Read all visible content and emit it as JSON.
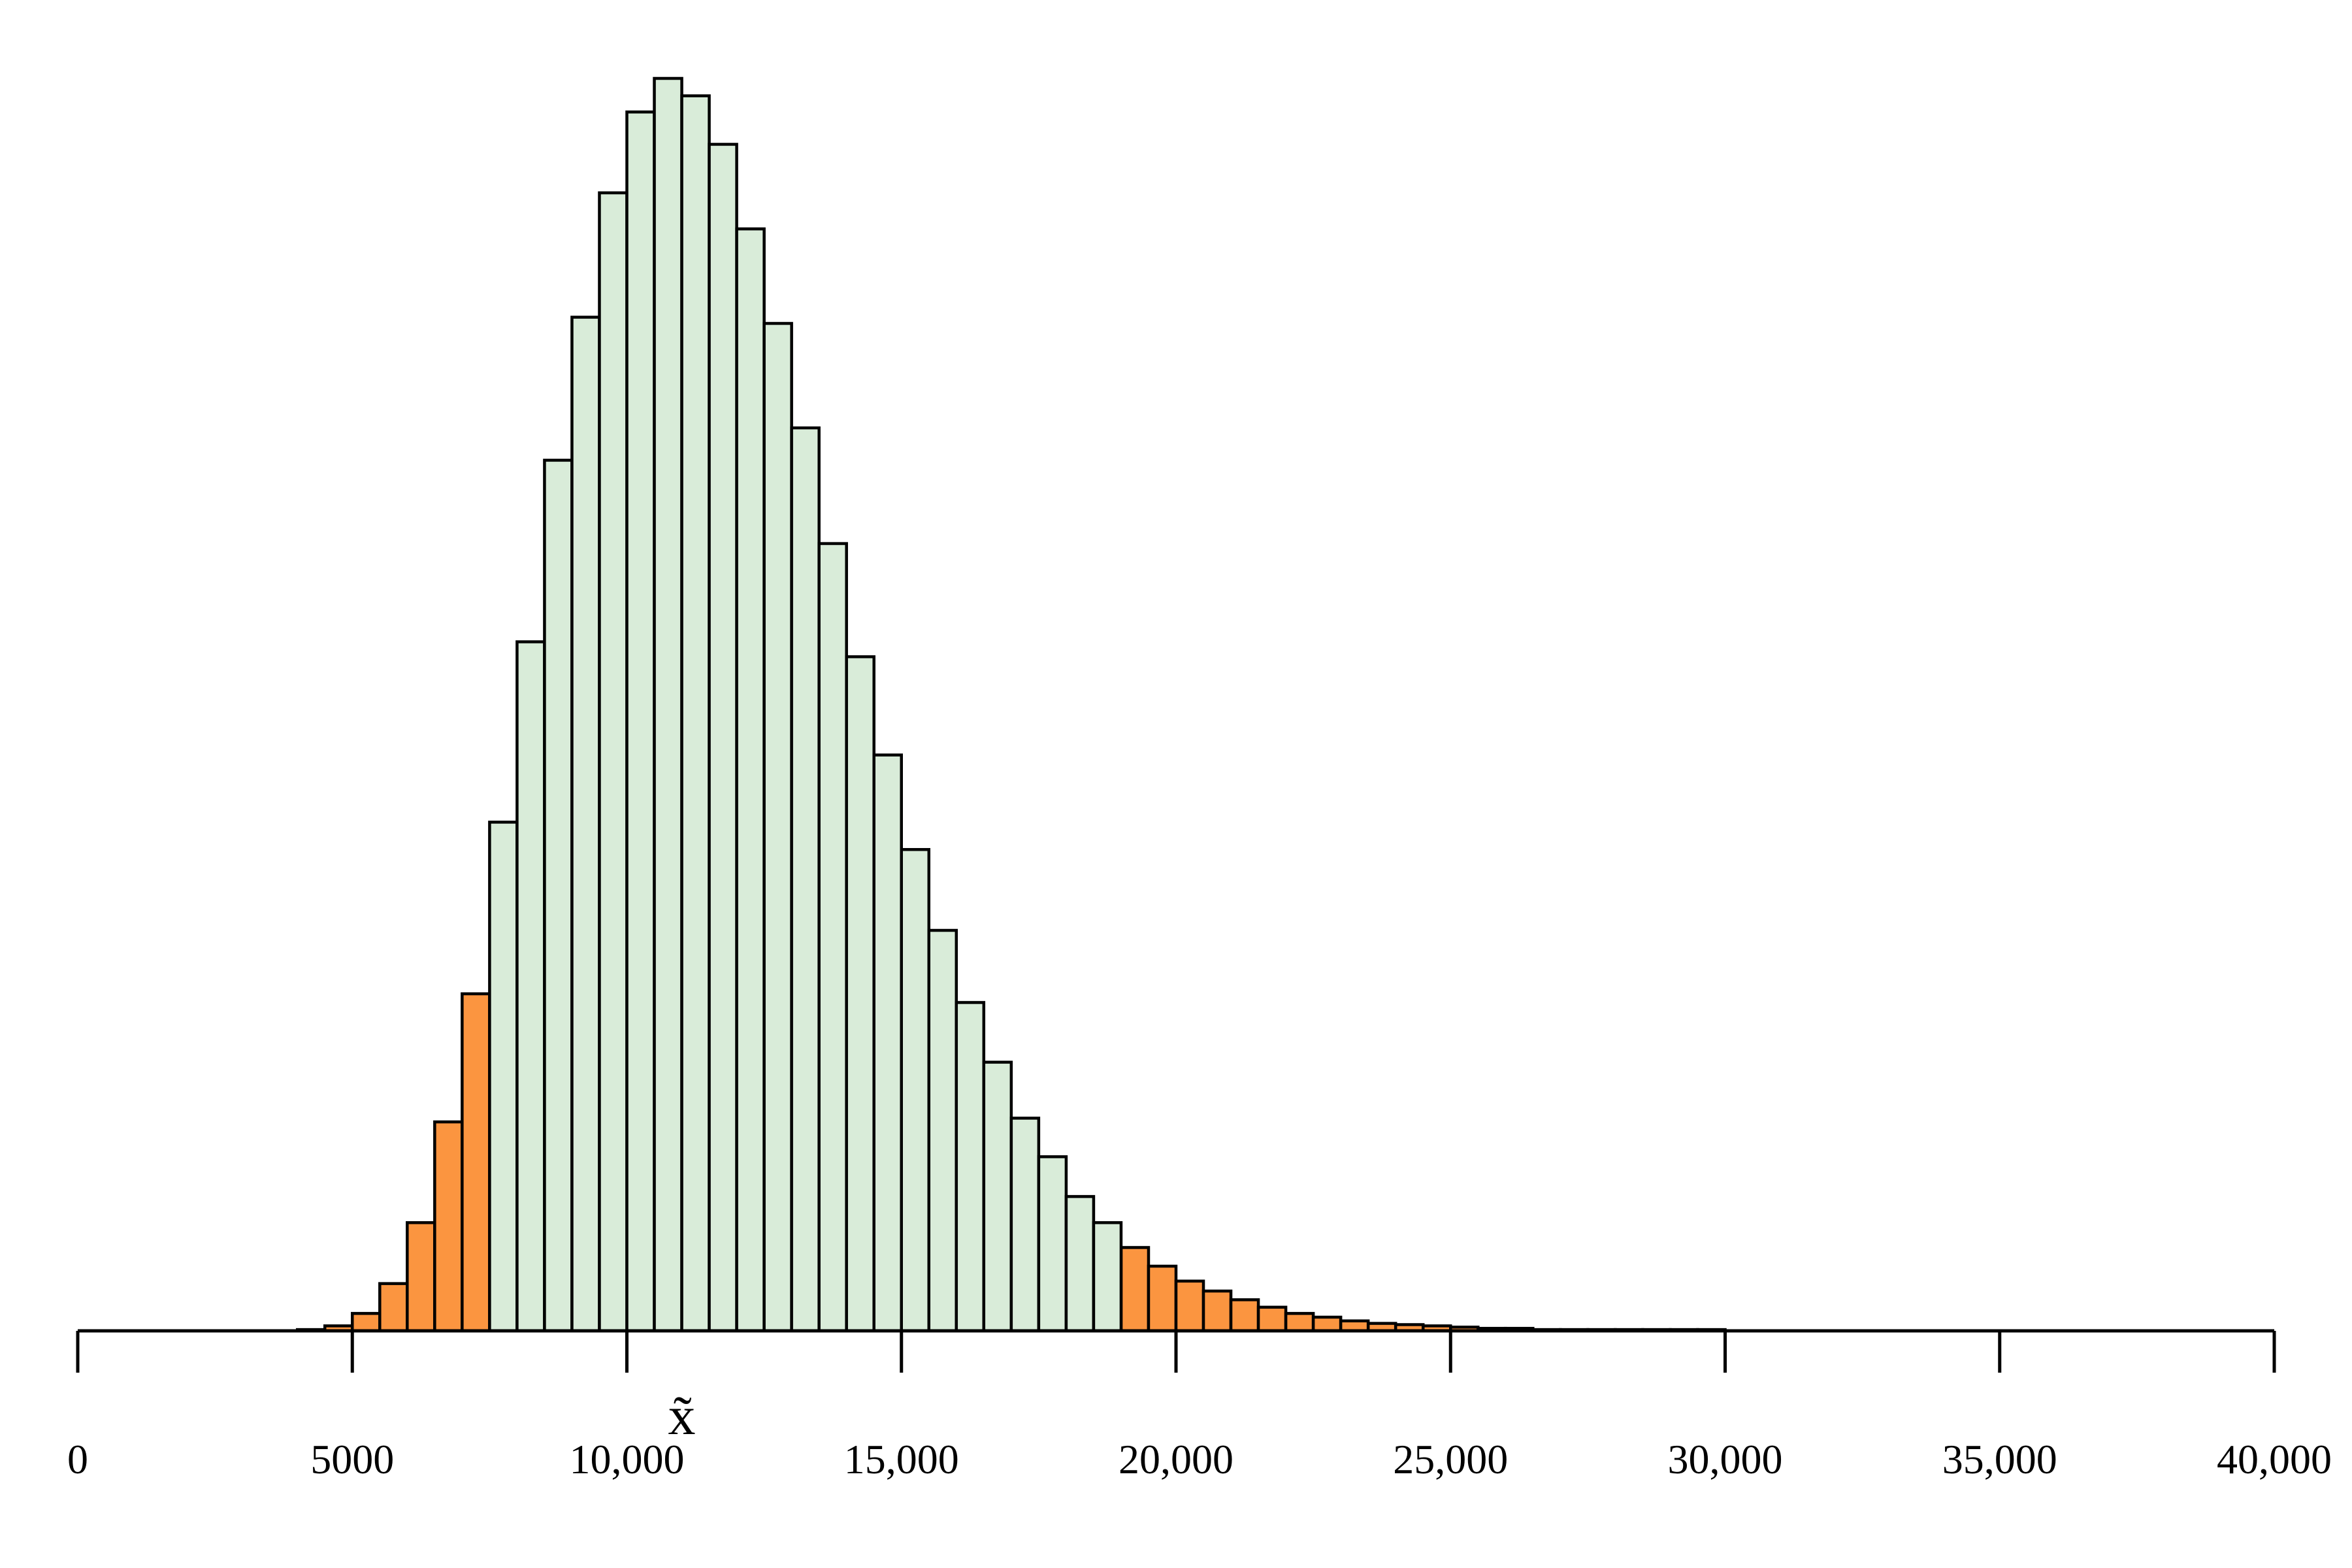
{
  "chart_data": {
    "type": "bar",
    "xlim": [
      0,
      40000
    ],
    "bin_width": 500,
    "x_ticks": [
      0,
      5000,
      10000,
      15000,
      20000,
      25000,
      30000,
      35000,
      40000
    ],
    "x_tick_labels": [
      "0",
      "5000",
      "10,000",
      "15,000",
      "20,000",
      "25,000",
      "30,000",
      "35,000",
      "40,000"
    ],
    "marker": {
      "label": "x̃",
      "x": 11000
    },
    "grid": false,
    "legend": "none",
    "colors": {
      "center": "#d9ecd9",
      "tail": "#fb9540",
      "outline": "#000000"
    },
    "series": [
      {
        "fill": "tail",
        "bins": [
          {
            "x0": 4000,
            "x1": 4500,
            "count": 1
          },
          {
            "x0": 4500,
            "x1": 5000,
            "count": 4
          },
          {
            "x0": 5000,
            "x1": 5500,
            "count": 14
          },
          {
            "x0": 5500,
            "x1": 6000,
            "count": 38
          },
          {
            "x0": 6000,
            "x1": 6500,
            "count": 87
          },
          {
            "x0": 6500,
            "x1": 7000,
            "count": 168
          },
          {
            "x0": 7000,
            "x1": 7500,
            "count": 271
          },
          {
            "x0": 19000,
            "x1": 19500,
            "count": 67
          },
          {
            "x0": 19500,
            "x1": 20000,
            "count": 52
          },
          {
            "x0": 20000,
            "x1": 20500,
            "count": 40
          },
          {
            "x0": 20500,
            "x1": 21000,
            "count": 32
          },
          {
            "x0": 21000,
            "x1": 21500,
            "count": 25
          },
          {
            "x0": 21500,
            "x1": 22000,
            "count": 19
          },
          {
            "x0": 22000,
            "x1": 22500,
            "count": 14
          },
          {
            "x0": 22500,
            "x1": 23000,
            "count": 11
          },
          {
            "x0": 23000,
            "x1": 23500,
            "count": 8
          },
          {
            "x0": 23500,
            "x1": 24000,
            "count": 6
          },
          {
            "x0": 24000,
            "x1": 24500,
            "count": 5
          },
          {
            "x0": 24500,
            "x1": 25000,
            "count": 4
          },
          {
            "x0": 25000,
            "x1": 25500,
            "count": 3
          },
          {
            "x0": 25500,
            "x1": 26000,
            "count": 2
          },
          {
            "x0": 26000,
            "x1": 26500,
            "count": 2
          },
          {
            "x0": 26500,
            "x1": 27000,
            "count": 1
          },
          {
            "x0": 27000,
            "x1": 27500,
            "count": 1
          },
          {
            "x0": 27500,
            "x1": 28000,
            "count": 1
          },
          {
            "x0": 28000,
            "x1": 28500,
            "count": 1
          },
          {
            "x0": 28500,
            "x1": 29000,
            "count": 1
          },
          {
            "x0": 29000,
            "x1": 29500,
            "count": 1
          },
          {
            "x0": 29500,
            "x1": 30000,
            "count": 1
          }
        ]
      },
      {
        "fill": "center",
        "bins": [
          {
            "x0": 7500,
            "x1": 8000,
            "count": 409
          },
          {
            "x0": 8000,
            "x1": 8500,
            "count": 554
          },
          {
            "x0": 8500,
            "x1": 9000,
            "count": 700
          },
          {
            "x0": 9000,
            "x1": 9500,
            "count": 815
          },
          {
            "x0": 9500,
            "x1": 10000,
            "count": 915
          },
          {
            "x0": 10000,
            "x1": 10500,
            "count": 980
          },
          {
            "x0": 10500,
            "x1": 11000,
            "count": 1007
          },
          {
            "x0": 11000,
            "x1": 11500,
            "count": 993
          },
          {
            "x0": 11500,
            "x1": 12000,
            "count": 954
          },
          {
            "x0": 12000,
            "x1": 12500,
            "count": 886
          },
          {
            "x0": 12500,
            "x1": 13000,
            "count": 810
          },
          {
            "x0": 13000,
            "x1": 13500,
            "count": 726
          },
          {
            "x0": 13500,
            "x1": 14000,
            "count": 633
          },
          {
            "x0": 14000,
            "x1": 14500,
            "count": 542
          },
          {
            "x0": 14500,
            "x1": 15000,
            "count": 463
          },
          {
            "x0": 15000,
            "x1": 15500,
            "count": 387
          },
          {
            "x0": 15500,
            "x1": 16000,
            "count": 322
          },
          {
            "x0": 16000,
            "x1": 16500,
            "count": 264
          },
          {
            "x0": 16500,
            "x1": 17000,
            "count": 216
          },
          {
            "x0": 17000,
            "x1": 17500,
            "count": 171
          },
          {
            "x0": 17500,
            "x1": 18000,
            "count": 140
          },
          {
            "x0": 18000,
            "x1": 18500,
            "count": 108
          },
          {
            "x0": 18500,
            "x1": 19000,
            "count": 87
          }
        ]
      }
    ]
  }
}
